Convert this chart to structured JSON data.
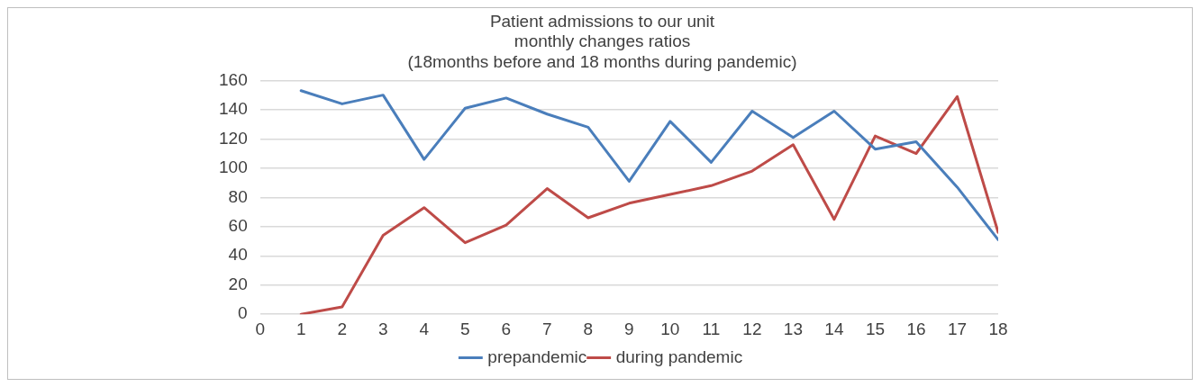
{
  "chart_data": {
    "type": "line",
    "title": [
      "Patient admissions to our unit",
      "monthly changes ratios",
      "(18months before and 18 months during pandemic)"
    ],
    "x": [
      1,
      2,
      3,
      4,
      5,
      6,
      7,
      8,
      9,
      10,
      11,
      12,
      13,
      14,
      15,
      16,
      17,
      18
    ],
    "series": [
      {
        "name": "prepandemic",
        "color": "#4a7ebb",
        "values": [
          153,
          144,
          150,
          106,
          141,
          148,
          137,
          128,
          91,
          132,
          104,
          139,
          121,
          139,
          113,
          118,
          87,
          51
        ]
      },
      {
        "name": "during pandemic",
        "color": "#be4b48",
        "values": [
          0,
          5,
          54,
          73,
          49,
          61,
          86,
          66,
          76,
          82,
          88,
          98,
          116,
          65,
          122,
          110,
          149,
          56
        ]
      }
    ],
    "xlim": [
      0,
      18
    ],
    "xticks": [
      0,
      1,
      2,
      3,
      4,
      5,
      6,
      7,
      8,
      9,
      10,
      11,
      12,
      13,
      14,
      15,
      16,
      17,
      18
    ],
    "ylim": [
      0,
      160
    ],
    "yticks": [
      0,
      20,
      40,
      60,
      80,
      100,
      120,
      140,
      160
    ],
    "grid": "y",
    "legend": "bottom",
    "marker": "none",
    "line_style": "solid"
  }
}
